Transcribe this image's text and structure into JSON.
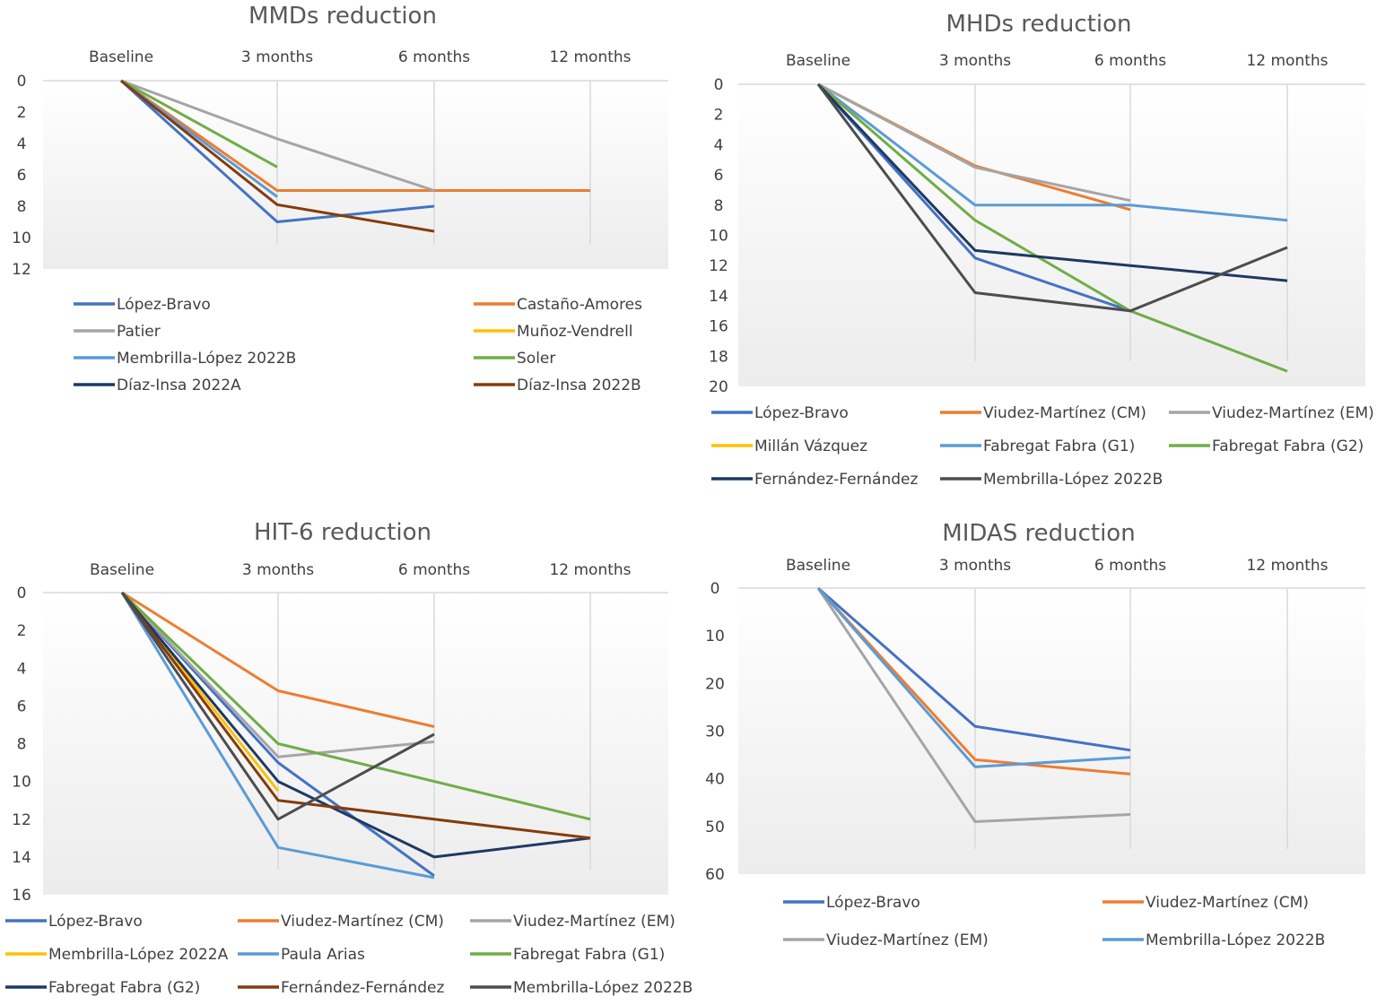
{
  "colors": {
    "blue": "#4472c4",
    "orange": "#ed7d31",
    "gray": "#a5a5a5",
    "yellow": "#ffc000",
    "lightblue": "#5b9bd5",
    "green": "#70ad47",
    "navy": "#1f3864",
    "brown": "#843c0c",
    "darkgray": "#4d4d4d"
  },
  "chart_data": [
    {
      "type": "line",
      "title": "MMDs reduction",
      "categories": [
        "Baseline",
        "3 months",
        "6 months",
        "12 months"
      ],
      "yticks": [
        "0",
        "2",
        "4",
        "6",
        "8",
        "10",
        "12"
      ],
      "ylim": [
        0,
        12
      ],
      "y_inverted": true,
      "series": [
        {
          "name": "López-Bravo",
          "color": "#4472c4",
          "values": [
            0,
            9,
            8,
            null
          ]
        },
        {
          "name": "Castaño-Amores",
          "color": "#ed7d31",
          "values": [
            0,
            7,
            7,
            7
          ]
        },
        {
          "name": "Patier",
          "color": "#a5a5a5",
          "values": [
            0,
            3.7,
            7,
            null
          ]
        },
        {
          "name": "Muñoz-Vendrell",
          "color": "#ffc000",
          "values": [
            null,
            null,
            null,
            null
          ]
        },
        {
          "name": "Membrilla-López 2022B",
          "color": "#5b9bd5",
          "values": [
            0,
            7.4,
            null,
            null
          ]
        },
        {
          "name": "Soler",
          "color": "#70ad47",
          "values": [
            0,
            5.5,
            null,
            null
          ]
        },
        {
          "name": "Díaz-Insa 2022A",
          "color": "#1f3864",
          "values": [
            null,
            null,
            null,
            null
          ]
        },
        {
          "name": "Díaz-Insa 2022B",
          "color": "#843c0c",
          "values": [
            0,
            7.9,
            9.6,
            null
          ]
        }
      ]
    },
    {
      "type": "line",
      "title": "MHDs reduction",
      "categories": [
        "Baseline",
        "3 months",
        "6 months",
        "12 months"
      ],
      "yticks": [
        "0",
        "2",
        "4",
        "6",
        "8",
        "10",
        "12",
        "14",
        "16",
        "18",
        "20"
      ],
      "ylim": [
        0,
        20
      ],
      "y_inverted": true,
      "series": [
        {
          "name": "López-Bravo",
          "color": "#4472c4",
          "values": [
            0,
            11.5,
            15,
            null
          ]
        },
        {
          "name": "Viudez-Martínez (CM)",
          "color": "#ed7d31",
          "values": [
            0,
            5.4,
            8.3,
            null
          ]
        },
        {
          "name": "Viudez-Martínez (EM)",
          "color": "#a5a5a5",
          "values": [
            0,
            5.5,
            7.7,
            null
          ]
        },
        {
          "name": "Millán Vázquez",
          "color": "#ffc000",
          "values": [
            null,
            null,
            null,
            null
          ]
        },
        {
          "name": "Fabregat Fabra (G1)",
          "color": "#5b9bd5",
          "values": [
            0,
            8,
            8,
            9
          ]
        },
        {
          "name": "Fabregat Fabra (G2)",
          "color": "#70ad47",
          "values": [
            0,
            9,
            15,
            19
          ]
        },
        {
          "name": "Fernández-Fernández",
          "color": "#1f3864",
          "values": [
            0,
            11,
            12,
            13
          ]
        },
        {
          "name": "Membrilla-López 2022B",
          "color": "#4d4d4d",
          "values": [
            0,
            13.8,
            15,
            10.8
          ]
        }
      ]
    },
    {
      "type": "line",
      "title": "HIT-6 reduction",
      "categories": [
        "Baseline",
        "3 months",
        "6 months",
        "12 months"
      ],
      "yticks": [
        "0",
        "2",
        "4",
        "6",
        "8",
        "10",
        "12",
        "14",
        "16"
      ],
      "ylim": [
        0,
        16
      ],
      "y_inverted": true,
      "series": [
        {
          "name": "López-Bravo",
          "color": "#4472c4",
          "values": [
            0,
            9,
            15,
            null
          ]
        },
        {
          "name": "Viudez-Martínez (CM)",
          "color": "#ed7d31",
          "values": [
            0,
            5.2,
            7.1,
            null
          ]
        },
        {
          "name": "Viudez-Martínez (EM)",
          "color": "#a5a5a5",
          "values": [
            0,
            8.7,
            7.9,
            null
          ]
        },
        {
          "name": "Membrilla-López 2022A",
          "color": "#ffc000",
          "values": [
            0,
            10.5,
            null,
            null
          ]
        },
        {
          "name": "Paula Arias",
          "color": "#5b9bd5",
          "values": [
            0,
            13.5,
            15.1,
            null
          ]
        },
        {
          "name": "Fabregat Fabra (G1)",
          "color": "#70ad47",
          "values": [
            0,
            8,
            10,
            12
          ]
        },
        {
          "name": "Fabregat Fabra (G2)",
          "color": "#1f3864",
          "values": [
            0,
            10,
            14,
            13
          ]
        },
        {
          "name": "Fernández-Fernández",
          "color": "#843c0c",
          "values": [
            0,
            11,
            12,
            13
          ]
        },
        {
          "name": "Membrilla-López 2022B",
          "color": "#4d4d4d",
          "values": [
            0,
            12,
            7.5,
            null
          ]
        }
      ]
    },
    {
      "type": "line",
      "title": "MIDAS reduction",
      "categories": [
        "Baseline",
        "3 months",
        "6 months",
        "12 months"
      ],
      "yticks": [
        "0",
        "10",
        "20",
        "30",
        "40",
        "50",
        "60"
      ],
      "ylim": [
        0,
        60
      ],
      "y_inverted": true,
      "series": [
        {
          "name": "López-Bravo",
          "color": "#4472c4",
          "values": [
            0,
            29,
            34,
            null
          ]
        },
        {
          "name": "Viudez-Martínez (CM)",
          "color": "#ed7d31",
          "values": [
            0,
            36,
            39,
            null
          ]
        },
        {
          "name": "Viudez-Martínez (EM)",
          "color": "#a5a5a5",
          "values": [
            0,
            49,
            47.5,
            null
          ]
        },
        {
          "name": "Membrilla-López 2022B",
          "color": "#5b9bd5",
          "values": [
            0,
            37.5,
            35.5,
            null
          ]
        }
      ]
    }
  ]
}
